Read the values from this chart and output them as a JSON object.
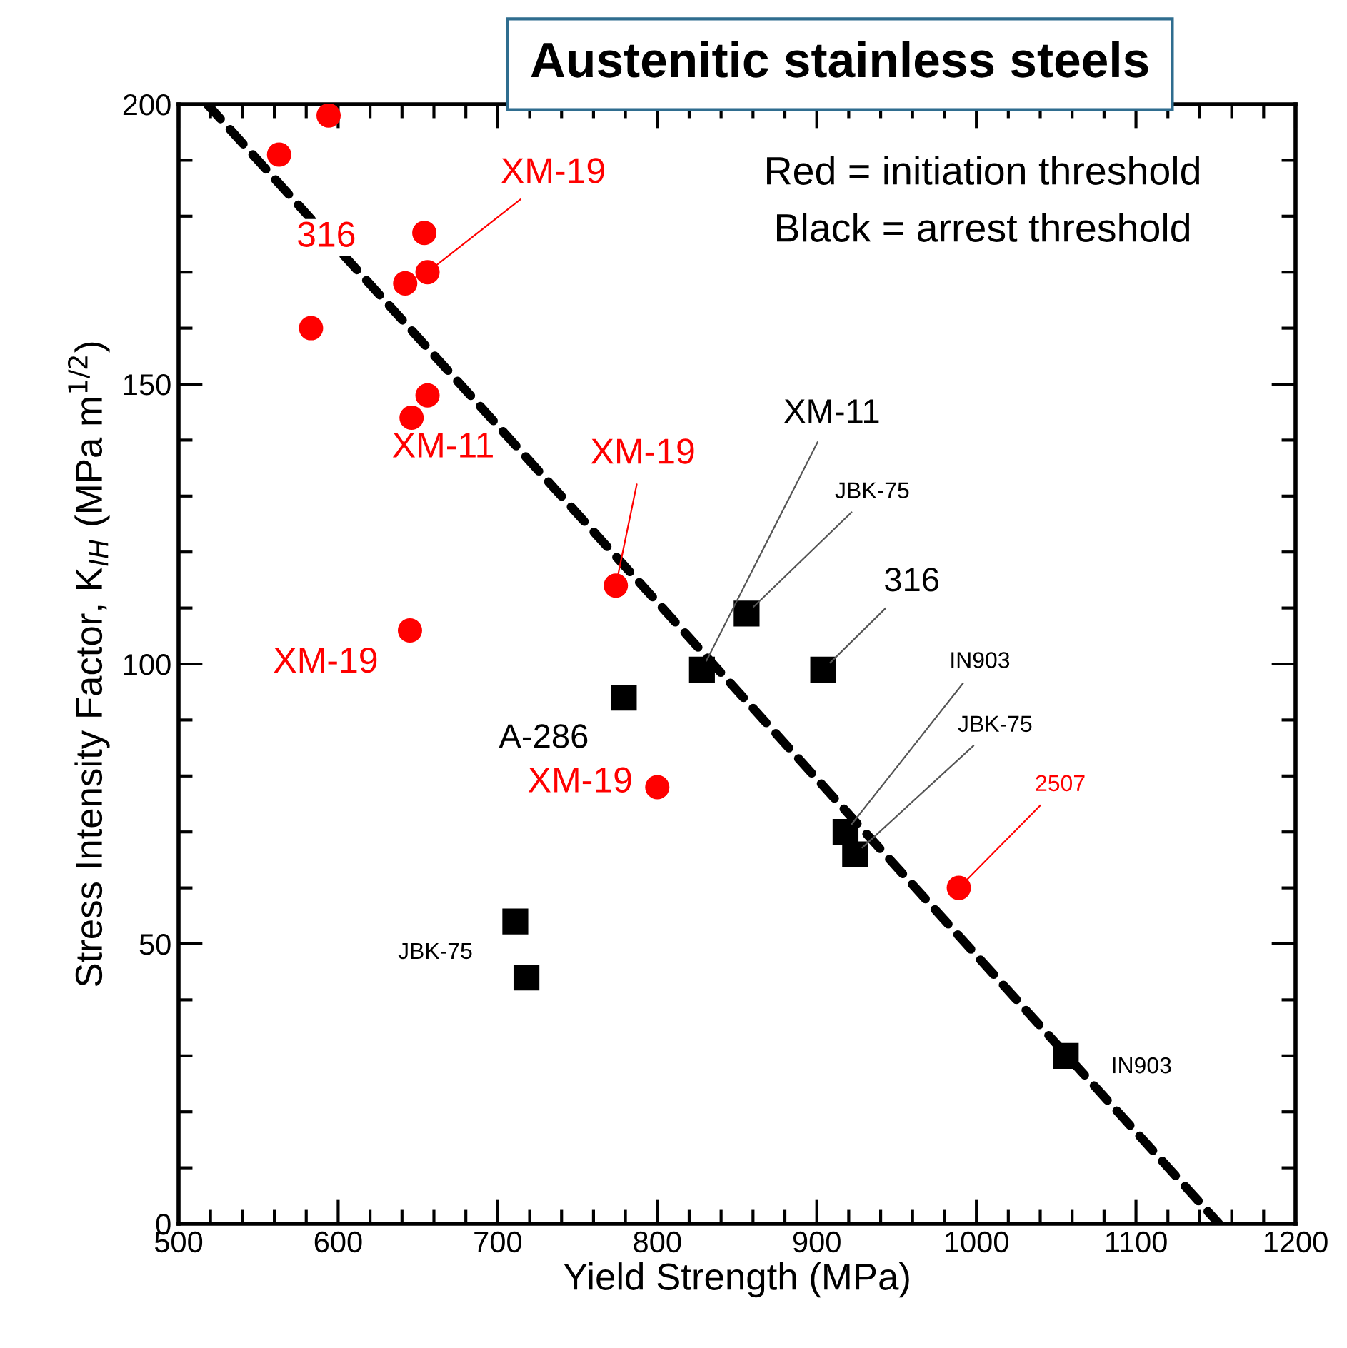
{
  "chart_data": {
    "type": "scatter",
    "title": "Austenitic stainless steels",
    "xlabel": "Yield Strength (MPa)",
    "ylabel": "Stress Intensity Factor, K$_{IH}$ (MPa m$^{1/2}$)",
    "series": [
      {
        "color": "#ff0000",
        "marker": "circle",
        "x": [
          594,
          563,
          654,
          656,
          642,
          583,
          656,
          646,
          774,
          645,
          800,
          989
        ],
        "values": [
          198,
          191,
          177,
          170,
          168,
          160,
          148,
          144,
          114,
          106,
          78,
          60
        ]
      },
      {
        "color": "#000000",
        "marker": "square",
        "x": [
          856,
          828,
          904,
          779,
          918,
          924,
          711,
          718,
          1056
        ],
        "values": [
          109,
          99,
          99,
          94,
          70,
          66,
          54,
          44,
          30
        ]
      },
      {
        "type": "line",
        "color": "#000000",
        "line_style": "dashed",
        "marker": "none",
        "x": [
          518,
          1152
        ],
        "values": [
          200,
          0
        ]
      }
    ],
    "annotations": [
      "Red = initiation threshold",
      "Black = arrest threshold",
      {
        "text": "316",
        "x": 563,
        "y": 191
      },
      {
        "text": "XM-19",
        "x": 656,
        "y": 170
      },
      {
        "text": "XM-11",
        "x": 656,
        "y": 148
      },
      {
        "text": "XM-19",
        "x": 774,
        "y": 114
      },
      {
        "text": "XM-19",
        "x": 645,
        "y": 106
      },
      {
        "text": "XM-19",
        "x": 800,
        "y": 78
      },
      {
        "text": "2507",
        "x": 989,
        "y": 60
      },
      {
        "text": "XM-11",
        "x": 828,
        "y": 99
      },
      {
        "text": "JBK-75",
        "x": 856,
        "y": 109
      },
      {
        "text": "316",
        "x": 904,
        "y": 99
      },
      {
        "text": "IN903",
        "x": 918,
        "y": 70
      },
      {
        "text": "JBK-75",
        "x": 924,
        "y": 66
      },
      {
        "text": "A-286",
        "x": 779,
        "y": 94
      },
      {
        "text": "JBK-75",
        "x": 711,
        "y": 54
      },
      {
        "text": "IN903",
        "x": 1056,
        "y": 30
      }
    ],
    "xlim": [
      500,
      1200
    ],
    "ylim": [
      0,
      200
    ],
    "xticks": [
      500,
      600,
      700,
      800,
      900,
      1000,
      1100,
      1200,
      {
        "value": 520,
        "label": null
      },
      {
        "value": 540,
        "label": null
      },
      {
        "value": 560,
        "label": null
      },
      {
        "value": 580,
        "label": null
      },
      {
        "value": 620,
        "label": null
      },
      {
        "value": 640,
        "label": null
      },
      {
        "value": 660,
        "label": null
      },
      {
        "value": 680,
        "label": null
      },
      {
        "value": 720,
        "label": null
      },
      {
        "value": 740,
        "label": null
      },
      {
        "value": 760,
        "label": null
      },
      {
        "value": 780,
        "label": null
      },
      {
        "value": 820,
        "label": null
      },
      {
        "value": 840,
        "label": null
      },
      {
        "value": 860,
        "label": null
      },
      {
        "value": 880,
        "label": null
      },
      {
        "value": 920,
        "label": null
      },
      {
        "value": 940,
        "label": null
      },
      {
        "value": 960,
        "label": null
      },
      {
        "value": 980,
        "label": null
      },
      {
        "value": 1020,
        "label": null
      },
      {
        "value": 1040,
        "label": null
      },
      {
        "value": 1060,
        "label": null
      },
      {
        "value": 1080,
        "label": null
      },
      {
        "value": 1120,
        "label": null
      },
      {
        "value": 1140,
        "label": null
      },
      {
        "value": 1160,
        "label": null
      },
      {
        "value": 1180,
        "label": null
      }
    ],
    "yticks": [
      0,
      50,
      100,
      150,
      200,
      {
        "value": 10,
        "label": null
      },
      {
        "value": 20,
        "label": null
      },
      {
        "value": 30,
        "label": null
      },
      {
        "value": 40,
        "label": null
      },
      {
        "value": 60,
        "label": null
      },
      {
        "value": 70,
        "label": null
      },
      {
        "value": 80,
        "label": null
      },
      {
        "value": 90,
        "label": null
      },
      {
        "value": 110,
        "label": null
      },
      {
        "value": 120,
        "label": null
      },
      {
        "value": 130,
        "label": null
      },
      {
        "value": 140,
        "label": null
      },
      {
        "value": 160,
        "label": null
      },
      {
        "value": 170,
        "label": null
      },
      {
        "value": 180,
        "label": null
      },
      {
        "value": 190,
        "label": null
      }
    ],
    "grid": false
  }
}
